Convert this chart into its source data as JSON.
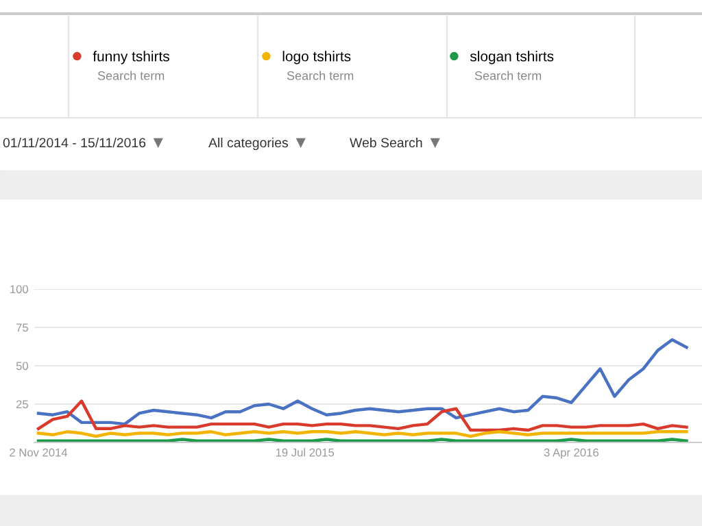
{
  "chart_data": {
    "type": "line",
    "x": [
      "2014-11-02",
      "2014-11-16",
      "2014-11-30",
      "2014-12-14",
      "2014-12-28",
      "2015-01-11",
      "2015-01-25",
      "2015-02-08",
      "2015-02-22",
      "2015-03-08",
      "2015-03-22",
      "2015-04-05",
      "2015-04-19",
      "2015-05-03",
      "2015-05-17",
      "2015-05-31",
      "2015-06-14",
      "2015-06-28",
      "2015-07-12",
      "2015-07-26",
      "2015-08-09",
      "2015-08-23",
      "2015-09-06",
      "2015-09-20",
      "2015-10-04",
      "2015-10-18",
      "2015-11-01",
      "2015-11-15",
      "2015-11-29",
      "2015-12-13",
      "2015-12-27",
      "2016-01-10",
      "2016-01-24",
      "2016-02-07",
      "2016-02-21",
      "2016-03-06",
      "2016-03-20",
      "2016-04-03",
      "2016-04-17",
      "2016-05-01",
      "2016-05-15",
      "2016-05-29",
      "2016-06-12",
      "2016-06-26",
      "2016-07-10",
      "2016-07-24"
    ],
    "series": [
      {
        "color": "#4a72c2",
        "values": [
          19,
          18,
          20,
          13,
          13,
          13,
          12,
          19,
          21,
          20,
          19,
          18,
          16,
          20,
          20,
          24,
          25,
          22,
          27,
          22,
          18,
          19,
          21,
          22,
          21,
          20,
          21,
          22,
          22,
          16,
          18,
          20,
          22,
          20,
          21,
          30,
          29,
          26,
          37,
          48,
          30,
          41,
          48,
          60,
          67,
          62
        ]
      },
      {
        "name": "funny tshirts",
        "color": "#d83b2b",
        "values": [
          9,
          15,
          17,
          27,
          9,
          9,
          11,
          10,
          11,
          10,
          10,
          10,
          12,
          12,
          12,
          12,
          10,
          12,
          12,
          11,
          12,
          12,
          11,
          11,
          10,
          9,
          11,
          12,
          20,
          22,
          8,
          8,
          8,
          9,
          8,
          11,
          11,
          10,
          10,
          11,
          11,
          11,
          12,
          9,
          11,
          10
        ]
      },
      {
        "name": "logo tshirts",
        "color": "#f2b400",
        "values": [
          6,
          5,
          7,
          6,
          4,
          6,
          5,
          6,
          6,
          5,
          6,
          6,
          7,
          5,
          6,
          7,
          6,
          7,
          6,
          7,
          7,
          6,
          7,
          6,
          5,
          6,
          5,
          6,
          6,
          6,
          4,
          6,
          7,
          6,
          5,
          6,
          6,
          6,
          6,
          6,
          6,
          6,
          6,
          7,
          7,
          7
        ]
      },
      {
        "name": "slogan tshirts",
        "color": "#1e9a4a",
        "values": [
          1,
          1,
          1,
          1,
          1,
          1,
          1,
          1,
          1,
          1,
          2,
          1,
          1,
          1,
          1,
          1,
          2,
          1,
          1,
          1,
          2,
          1,
          1,
          1,
          1,
          1,
          1,
          1,
          2,
          1,
          1,
          1,
          1,
          1,
          1,
          1,
          1,
          2,
          1,
          1,
          1,
          1,
          1,
          1,
          2,
          1
        ]
      }
    ],
    "xlim": [
      "2014-10-29",
      "2016-08-08"
    ],
    "xticks": [
      {
        "value": "2014-11-02",
        "label": "2 Nov 2014"
      },
      {
        "value": "2015-07-19",
        "label": "19 Jul 2015"
      },
      {
        "value": "2016-04-03",
        "label": "3 Apr 2016"
      }
    ],
    "ylim": [
      0,
      100
    ],
    "yticks": [
      25,
      50,
      75,
      100
    ],
    "grid": "y",
    "legend": "top",
    "marker": "none",
    "line_style": "solid",
    "annotations": [
      "Search term",
      "01/11/2014 - 15/11/2016",
      "All categories",
      "Web Search"
    ]
  }
}
